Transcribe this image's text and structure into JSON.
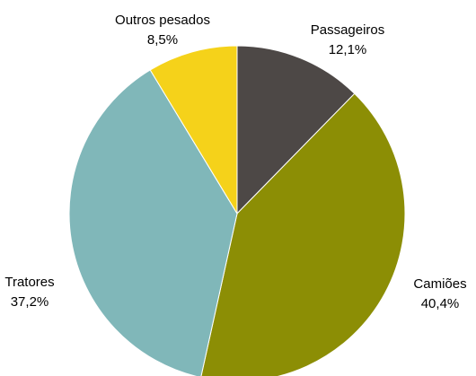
{
  "chart_data": {
    "type": "pie",
    "title": "",
    "start_angle_deg": 0,
    "direction": "clockwise",
    "slices": [
      {
        "label": "Passageiros",
        "value": 12.1,
        "value_label": "12,1%",
        "color": "#4d4846"
      },
      {
        "label": "Camiões",
        "value": 40.4,
        "value_label": "40,4%",
        "color": "#8c8e05"
      },
      {
        "label": "Tratores",
        "value": 37.2,
        "value_label": "37,2%",
        "color": "#80b7b9"
      },
      {
        "label": "Outros pesados",
        "value": 8.5,
        "value_label": "8,5%",
        "color": "#f5d21a"
      }
    ]
  }
}
